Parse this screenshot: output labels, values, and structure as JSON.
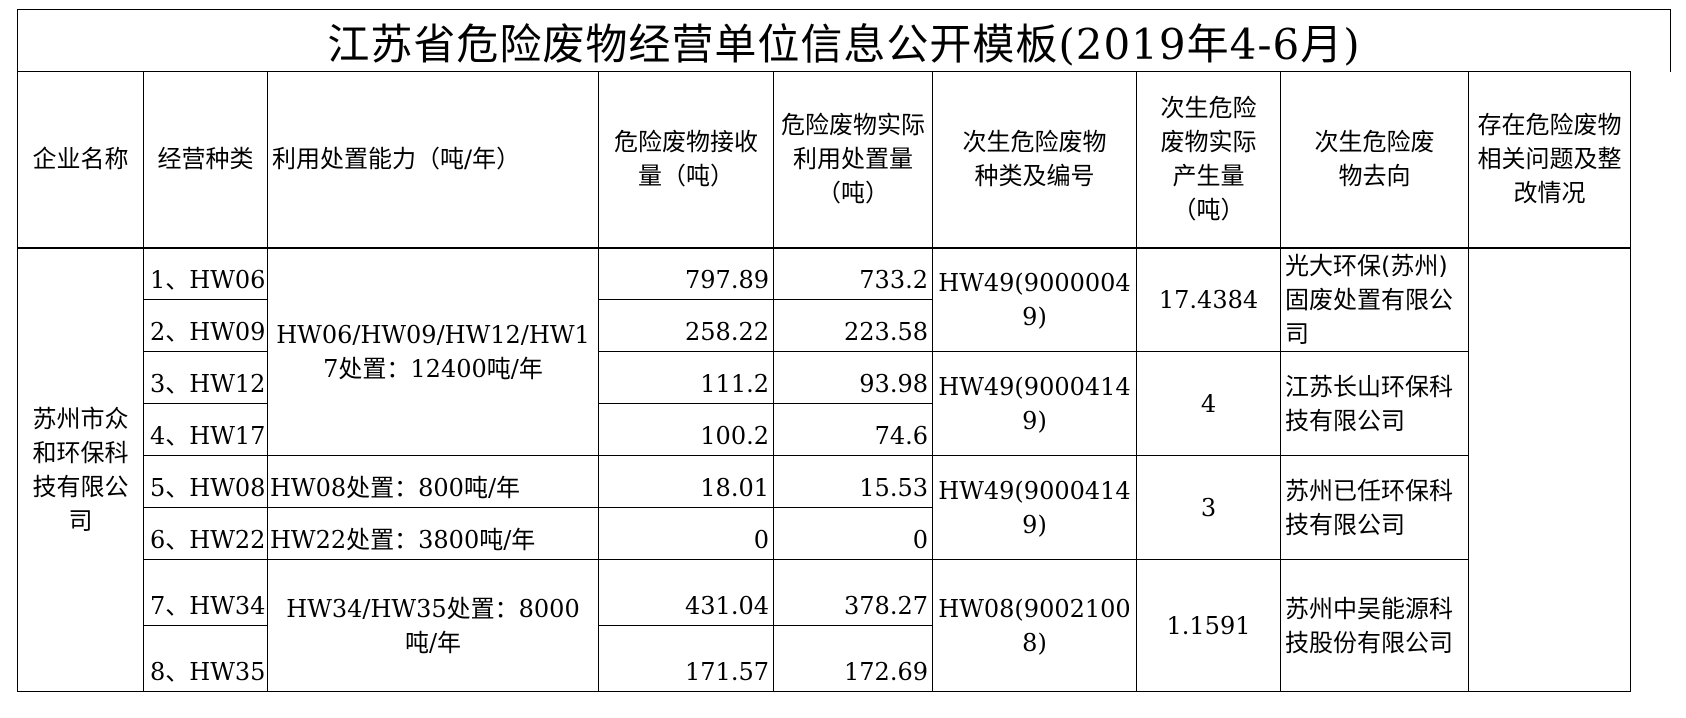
{
  "title": "江苏省危险废物经营单位信息公开模板(2019年4-6月)",
  "headers": {
    "company": "企业名称",
    "type": "经营种类",
    "capacity": "利用处置能力（吨/年）",
    "received": "危险废物接收量（吨）",
    "utilized": "危险废物实际利用处置量（吨）",
    "secondary_code": "次生危险废物种类及编号",
    "secondary_amount": "次生危险废物实际产生量（吨）",
    "secondary_dest": "次生危险废物去向",
    "issues": "存在危险废物相关问题及整改情况"
  },
  "company": "苏州市众和环保科技有限公司",
  "rows": [
    {
      "type": "1、HW06",
      "received": "797.89",
      "utilized": "733.2"
    },
    {
      "type": "2、HW09",
      "received": "258.22",
      "utilized": "223.58"
    },
    {
      "type": "3、HW12",
      "received": "111.2",
      "utilized": "93.98"
    },
    {
      "type": "4、HW17",
      "received": "100.2",
      "utilized": "74.6"
    },
    {
      "type": "5、HW08",
      "received": "18.01",
      "utilized": "15.53"
    },
    {
      "type": "6、HW22",
      "received": "0",
      "utilized": "0"
    },
    {
      "type": "7、HW34",
      "received": "431.04",
      "utilized": "378.27"
    },
    {
      "type": "8、HW35",
      "received": "171.57",
      "utilized": "172.69"
    }
  ],
  "capacities": [
    "HW06/HW09/HW12/HW17处置：12400吨/年",
    "HW08处置：800吨/年",
    "HW22处置：3800吨/年",
    "HW34/HW35处置：8000吨/年"
  ],
  "secondary": [
    {
      "code": "HW49(90000049)",
      "amount": "17.4384",
      "dest": "光大环保(苏州)固废处置有限公司"
    },
    {
      "code": "HW49(90004149)",
      "amount": "4",
      "dest": "江苏长山环保科技有限公司"
    },
    {
      "code": "HW49(90004149)",
      "amount": "3",
      "dest": "苏州已任环保科技有限公司"
    },
    {
      "code": "HW08(90021008)",
      "amount": "1.1591",
      "dest": "苏州中吴能源科技股份有限公司"
    }
  ],
  "issues": ""
}
